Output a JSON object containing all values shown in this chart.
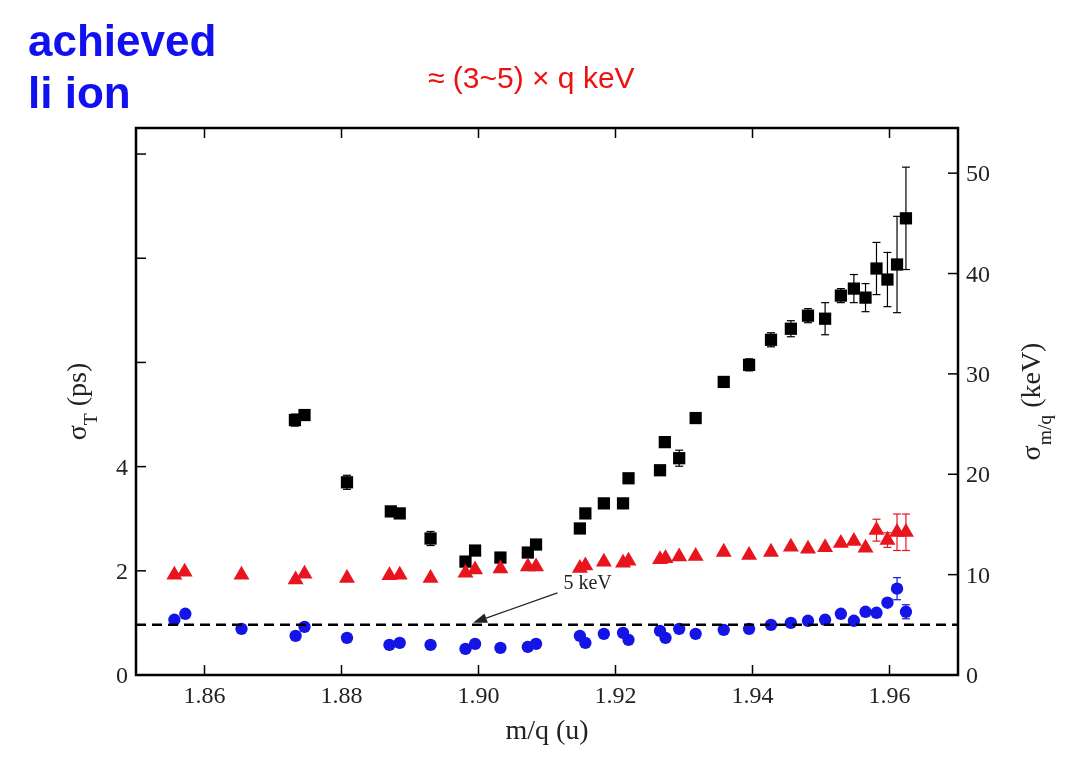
{
  "chart_data": {
    "type": "scatter",
    "xlabel": "m/q (u)",
    "ylabel": "σ$_{T}$ (ps)",
    "y2label": "σ$_{m/q}$ (keV)",
    "annotations": [
      "achieved",
      "li ion",
      "≈ (3~5) × q keV"
    ],
    "xlim": [
      1.85,
      1.97
    ],
    "xticks": [
      1.86,
      1.88,
      {
        "value": 1.9,
        "label": "1.90"
      },
      1.92,
      1.94,
      1.96
    ],
    "ylim": [
      0,
      10.5
    ],
    "yticks": [
      0,
      2,
      4,
      {
        "value": 6,
        "label": null
      },
      {
        "value": 8,
        "label": null
      },
      {
        "value": 10,
        "label": null
      }
    ],
    "y2lim": [
      0,
      54.5
    ],
    "y2ticks": [
      0,
      10,
      20,
      30,
      40,
      50
    ],
    "ref_lines": [
      {
        "axis": "y2",
        "value": 5,
        "label": "5 keV",
        "line_style": "dashed",
        "color": "#000000"
      }
    ],
    "series": [
      {
        "color": "#000000",
        "marker": "square",
        "axis": "y2",
        "x": [
          1.8732,
          1.8746,
          1.8808,
          1.8872,
          1.8885,
          1.893,
          1.8981,
          1.8995,
          1.9032,
          1.9072,
          1.9084,
          1.9148,
          1.9156,
          1.9183,
          1.9211,
          1.9219,
          1.9265,
          1.9272,
          1.9293,
          1.9317,
          1.9358,
          1.9395,
          1.9427,
          1.9456,
          1.9481,
          1.9506,
          1.9529,
          1.9548,
          1.9565,
          1.9581,
          1.9597,
          1.9611,
          1.9624
        ],
        "values": [
          25.4,
          25.9,
          19.2,
          16.3,
          16.1,
          13.6,
          11.3,
          12.4,
          11.7,
          12.2,
          13.0,
          14.6,
          16.1,
          17.1,
          17.1,
          19.6,
          20.4,
          23.2,
          21.6,
          25.6,
          29.2,
          30.9,
          33.4,
          34.5,
          35.8,
          35.5,
          37.8,
          38.5,
          37.6,
          40.5,
          39.4,
          40.9,
          45.5
        ],
        "errors": [
          0.6,
          null,
          0.7,
          null,
          null,
          0.7,
          null,
          null,
          0.5,
          null,
          null,
          null,
          null,
          null,
          null,
          null,
          null,
          null,
          0.8,
          null,
          null,
          0.6,
          0.7,
          0.8,
          0.7,
          1.6,
          0.7,
          1.4,
          1.4,
          2.6,
          2.7,
          4.8,
          5.1
        ]
      },
      {
        "color": "#e8141e",
        "marker": "triangle",
        "axis": "y",
        "x": [
          1.8556,
          1.8571,
          1.8654,
          1.8733,
          1.8746,
          1.8808,
          1.887,
          1.8885,
          1.893,
          1.8981,
          1.8995,
          1.9032,
          1.9072,
          1.9084,
          1.9148,
          1.9156,
          1.9183,
          1.9211,
          1.9219,
          1.9265,
          1.9273,
          1.9293,
          1.9317,
          1.9358,
          1.9395,
          1.9427,
          1.9456,
          1.9481,
          1.9506,
          1.9529,
          1.9548,
          1.9565,
          1.9581,
          1.9597,
          1.9611,
          1.9624
        ],
        "values": [
          1.92,
          1.98,
          1.92,
          1.83,
          1.94,
          1.86,
          1.91,
          1.92,
          1.86,
          1.96,
          2.02,
          2.04,
          2.08,
          2.08,
          2.05,
          2.1,
          2.17,
          2.15,
          2.19,
          2.22,
          2.24,
          2.27,
          2.28,
          2.36,
          2.3,
          2.36,
          2.46,
          2.42,
          2.45,
          2.53,
          2.57,
          2.44,
          2.78,
          2.59,
          2.74,
          2.74
        ],
        "errors": [
          null,
          null,
          null,
          null,
          null,
          null,
          null,
          null,
          null,
          null,
          null,
          null,
          null,
          null,
          null,
          null,
          null,
          null,
          null,
          null,
          null,
          null,
          null,
          null,
          null,
          null,
          null,
          null,
          null,
          null,
          null,
          null,
          0.21,
          0.14,
          0.35,
          0.35
        ]
      },
      {
        "color": "#1414e6",
        "marker": "circle",
        "axis": "y2",
        "x": [
          1.8556,
          1.8572,
          1.8654,
          1.8733,
          1.8746,
          1.8808,
          1.887,
          1.8885,
          1.893,
          1.8981,
          1.8995,
          1.9032,
          1.9072,
          1.9084,
          1.9148,
          1.9156,
          1.9183,
          1.9211,
          1.9219,
          1.9265,
          1.9273,
          1.9293,
          1.9317,
          1.9358,
          1.9395,
          1.9427,
          1.9456,
          1.9481,
          1.9506,
          1.9529,
          1.9548,
          1.9565,
          1.9581,
          1.9597,
          1.9611,
          1.9624
        ],
        "values": [
          5.5,
          6.1,
          4.6,
          3.9,
          4.8,
          3.7,
          3.0,
          3.2,
          3.0,
          2.6,
          3.1,
          2.7,
          2.8,
          3.1,
          3.9,
          3.2,
          4.1,
          4.2,
          3.5,
          4.4,
          3.7,
          4.6,
          4.1,
          4.5,
          4.6,
          5.0,
          5.2,
          5.4,
          5.5,
          6.1,
          5.4,
          6.3,
          6.2,
          7.2,
          8.6,
          6.3
        ],
        "errors": [
          null,
          null,
          null,
          null,
          null,
          null,
          null,
          null,
          null,
          null,
          null,
          null,
          null,
          null,
          null,
          null,
          null,
          null,
          null,
          null,
          null,
          null,
          null,
          null,
          null,
          null,
          null,
          null,
          null,
          null,
          null,
          null,
          null,
          null,
          1.1,
          0.7
        ]
      }
    ]
  }
}
